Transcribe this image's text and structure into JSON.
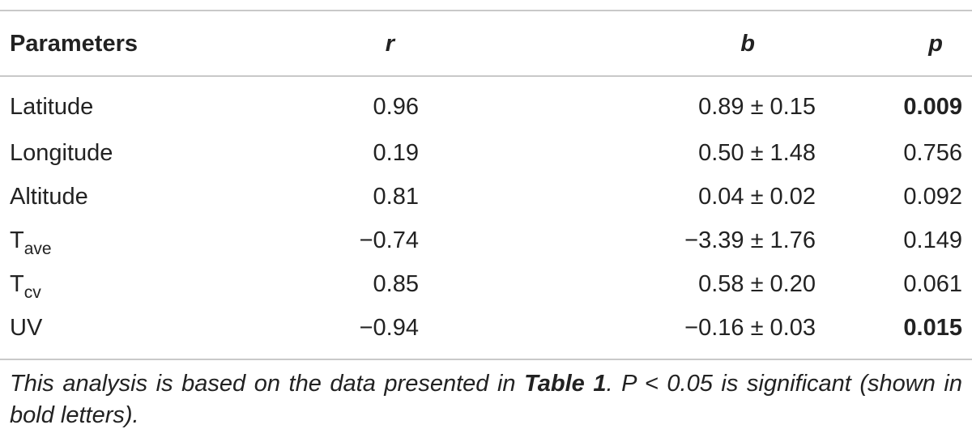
{
  "table": {
    "headers": {
      "parameters": "Parameters",
      "r": "r",
      "b": "b",
      "p": "p"
    },
    "rows": [
      {
        "param_main": "Latitude",
        "param_sub": "",
        "r": "0.96",
        "b": "0.89 ± 0.15",
        "p": "0.009",
        "significant": true
      },
      {
        "param_main": "Longitude",
        "param_sub": "",
        "r": "0.19",
        "b": "0.50 ± 1.48",
        "p": "0.756",
        "significant": false
      },
      {
        "param_main": "Altitude",
        "param_sub": "",
        "r": "0.81",
        "b": "0.04 ± 0.02",
        "p": "0.092",
        "significant": false
      },
      {
        "param_main": "T",
        "param_sub": "ave",
        "r": "−0.74",
        "b": "−3.39 ± 1.76",
        "p": "0.149",
        "significant": false
      },
      {
        "param_main": "T",
        "param_sub": "cv",
        "r": "0.85",
        "b": "0.58 ± 0.20",
        "p": "0.061",
        "significant": false
      },
      {
        "param_main": "UV",
        "param_sub": "",
        "r": "−0.94",
        "b": "−0.16 ± 0.03",
        "p": "0.015",
        "significant": true
      }
    ]
  },
  "footnote": {
    "part1": "This analysis is based on the data presented in ",
    "table_ref": "Table 1",
    "part2": ". P < 0.05 is significant (shown in bold letters)."
  }
}
